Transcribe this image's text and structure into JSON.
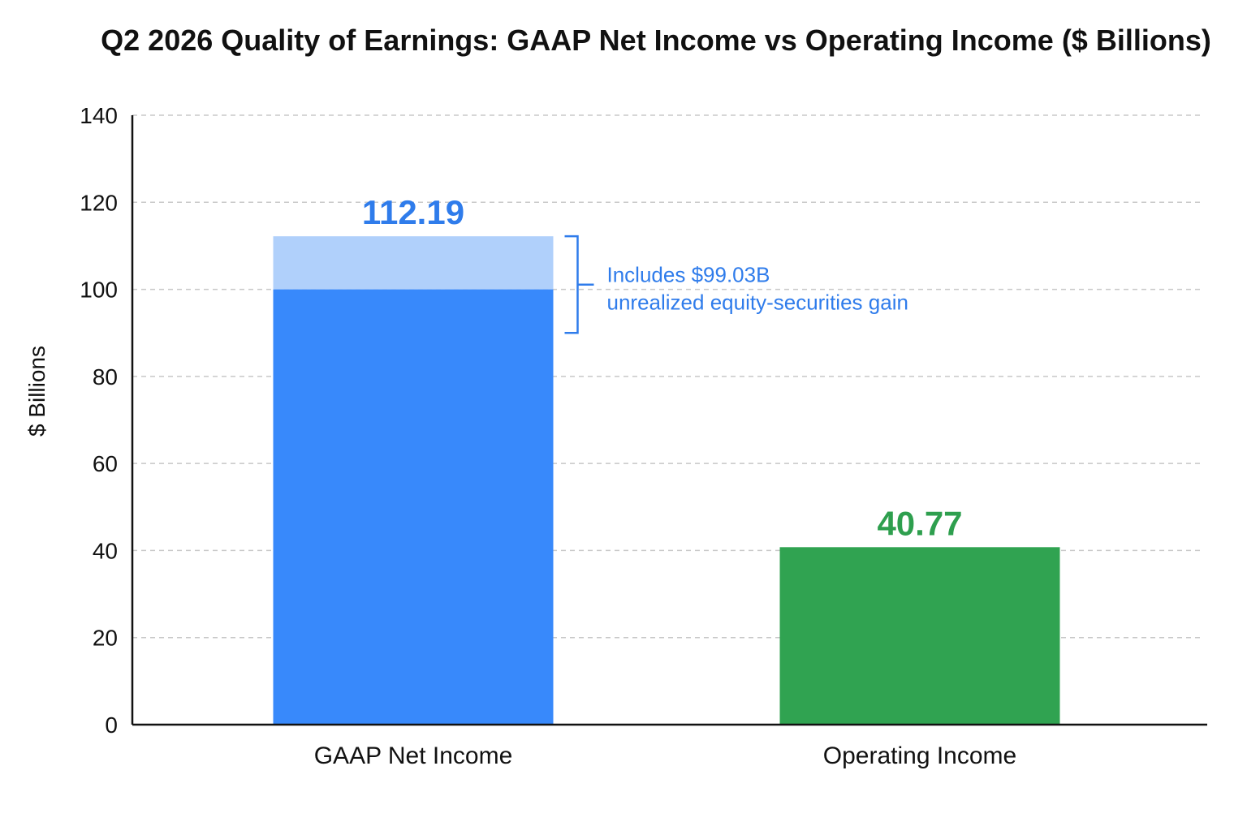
{
  "chart_data": {
    "type": "bar",
    "title": "Q2 2026 Quality of Earnings: GAAP Net Income vs Operating Income ($ Billions)",
    "xlabel": "",
    "ylabel": "$ Billions",
    "ylim": [
      0,
      140
    ],
    "yticks": [
      0,
      20,
      40,
      60,
      80,
      100,
      120,
      140
    ],
    "ytick_labels": [
      "0",
      "20",
      "40",
      "60",
      "80",
      "100",
      "120",
      "140"
    ],
    "grid": true,
    "categories": [
      "GAAP Net Income",
      "Operating Income"
    ],
    "values": [
      112.19,
      40.77
    ],
    "value_labels": [
      "112.19",
      "40.77"
    ],
    "colors": [
      "#3889FB",
      "#30A351"
    ],
    "highlight_segment": {
      "category": "GAAP Net Income",
      "from_value": 100,
      "to_value": 112.19,
      "color": "#B0D0FB"
    },
    "annotation": {
      "category": "GAAP Net Income",
      "lines": [
        "Includes $99.03B",
        "unrealized equity-securities gain"
      ],
      "color": "#2F7CEB",
      "bracket_from_value": 90,
      "bracket_to_value": 112.19
    },
    "label_colors": [
      "#2F7CEB",
      "#2E9F4E"
    ]
  }
}
